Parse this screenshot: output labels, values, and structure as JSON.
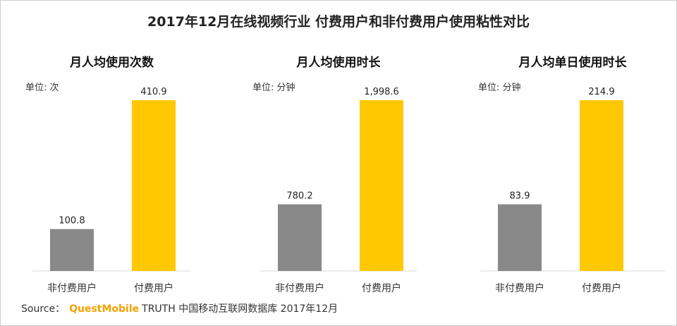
{
  "title": "2017年12月在线视频行业 付费用户和非付费用户使用粘性对比",
  "colors": {
    "non_paid": "#898989",
    "paid": "#ffc800",
    "axis": "#d9d9d9"
  },
  "chart_data": [
    {
      "type": "bar",
      "title": "月人均使用次数",
      "unit": "单位: 次",
      "categories": [
        "非付费用户",
        "付费用户"
      ],
      "values": [
        100.8,
        410.9
      ],
      "value_labels": [
        "100.8",
        "410.9"
      ]
    },
    {
      "type": "bar",
      "title": "月人均使用时长",
      "unit": "单位: 分钟",
      "categories": [
        "非付费用户",
        "付费用户"
      ],
      "values": [
        780.2,
        1998.6
      ],
      "value_labels": [
        "780.2",
        "1,998.6"
      ]
    },
    {
      "type": "bar",
      "title": "月人均单日使用时长",
      "unit": "单位: 分钟",
      "categories": [
        "非付费用户",
        "付费用户"
      ],
      "values": [
        83.9,
        214.9
      ],
      "value_labels": [
        "83.9",
        "214.9"
      ]
    }
  ],
  "source": {
    "prefix": "Source：",
    "brand": "QuestMobile",
    "rest": "TRUTH 中国移动互联网数据库 2017年12月"
  }
}
